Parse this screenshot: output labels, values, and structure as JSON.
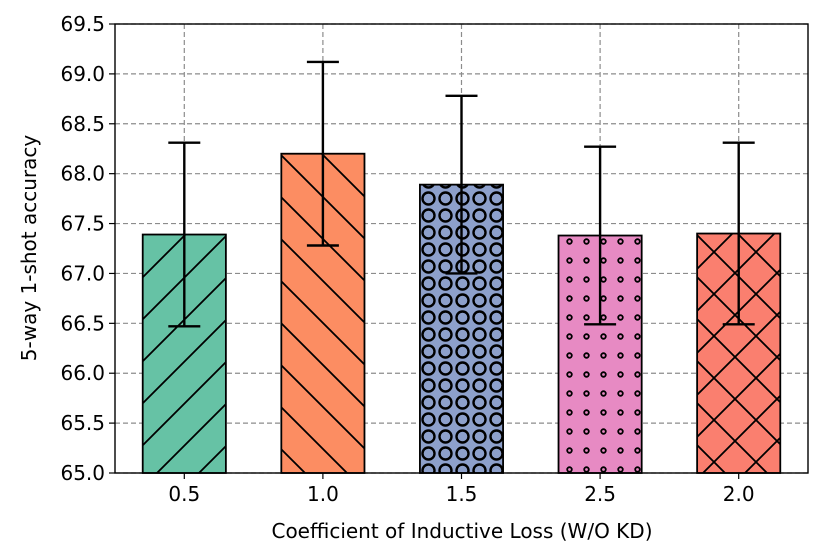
{
  "chart_data": {
    "type": "bar",
    "title": "",
    "xlabel": "Coefficient of Inductive Loss (W/O KD)",
    "ylabel": "5-way 1-shot accuracy",
    "ylim": [
      65.0,
      69.5
    ],
    "yticks": [
      "65.0",
      "65.5",
      "66.0",
      "66.5",
      "67.0",
      "67.5",
      "68.0",
      "68.5",
      "69.0",
      "69.5"
    ],
    "grid": true,
    "categories": [
      "0.5",
      "1.0",
      "1.5",
      "2.5",
      "2.0"
    ],
    "values": [
      67.39,
      68.2,
      67.89,
      67.38,
      67.4
    ],
    "error": [
      0.92,
      0.92,
      0.89,
      0.89,
      0.91
    ],
    "colors": [
      "#66c2a5",
      "#fc8d62",
      "#8da0cb",
      "#e78ac3",
      "#fa7f6f"
    ],
    "hatches": [
      "slash",
      "backslash",
      "circle",
      "dot",
      "cross"
    ]
  }
}
